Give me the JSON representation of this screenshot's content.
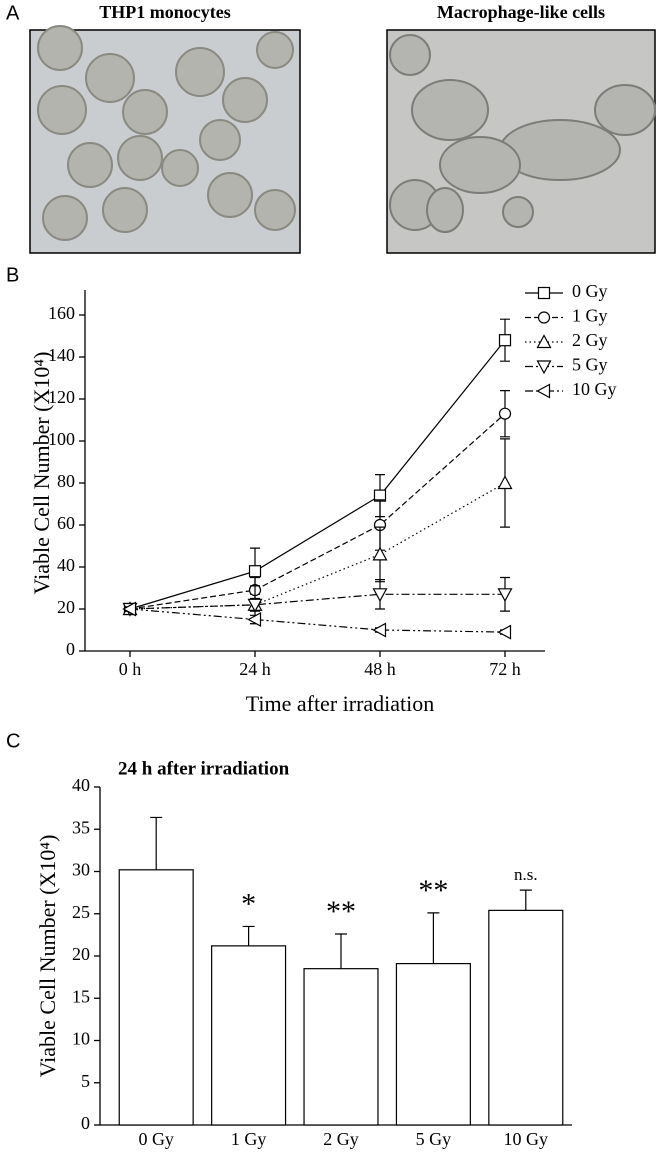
{
  "panels": {
    "a": {
      "label": "A",
      "images": [
        "THP1 monocytes",
        "Macrophage-like cells"
      ]
    }
  },
  "chart_data": [
    {
      "type": "line",
      "panel_label": "B",
      "x_label": "Time after irradiation",
      "y_label": "Viable Cell Number (X10⁴)",
      "categories": [
        "0 h",
        "24 h",
        "48 h",
        "72 h"
      ],
      "ylim": [
        0,
        160
      ],
      "yticks": [
        0,
        20,
        40,
        60,
        80,
        100,
        120,
        140,
        160
      ],
      "grid": false,
      "legend": "upper right",
      "series": [
        {
          "name": "0 Gy",
          "color": "#000",
          "dash": "solid",
          "marker": "square",
          "values": [
            20,
            38,
            74,
            148
          ],
          "errors": [
            1,
            11,
            10,
            10
          ]
        },
        {
          "name": "1 Gy",
          "color": "#000",
          "dash": "dashed",
          "marker": "circle",
          "values": [
            20,
            29,
            60,
            113
          ],
          "errors": [
            1,
            6,
            12,
            11
          ]
        },
        {
          "name": "2 Gy",
          "color": "#000",
          "dash": "dotted",
          "marker": "triangle-up",
          "values": [
            20,
            22,
            46,
            80
          ],
          "errors": [
            1,
            3,
            13,
            21
          ]
        },
        {
          "name": "5 Gy",
          "color": "#000",
          "dash": "dashdot",
          "marker": "triangle-down",
          "values": [
            20,
            22,
            27,
            27
          ],
          "errors": [
            1,
            9,
            7,
            8
          ]
        },
        {
          "name": "10 Gy",
          "color": "#000",
          "dash": "dashdotdot",
          "marker": "triangle-left",
          "values": [
            20,
            15,
            10,
            9
          ],
          "errors": [
            1,
            2,
            1,
            1
          ]
        }
      ]
    },
    {
      "type": "bar",
      "panel_label": "C",
      "title": "24 h after irradiation",
      "y_label": "Viable Cell Number (X10⁴)",
      "categories": [
        "0 Gy",
        "1 Gy",
        "2 Gy",
        "5 Gy",
        "10 Gy"
      ],
      "values": [
        30.2,
        21.2,
        18.5,
        19.1,
        25.4
      ],
      "errors": [
        6.2,
        2.3,
        4.1,
        6,
        2.4
      ],
      "significance": [
        null,
        "*",
        "**",
        "**",
        "n.s."
      ],
      "color": "#fff",
      "ylim": [
        0,
        40
      ],
      "yticks": [
        0,
        5,
        10,
        15,
        20,
        25,
        30,
        35,
        40
      ],
      "grid": false
    }
  ]
}
